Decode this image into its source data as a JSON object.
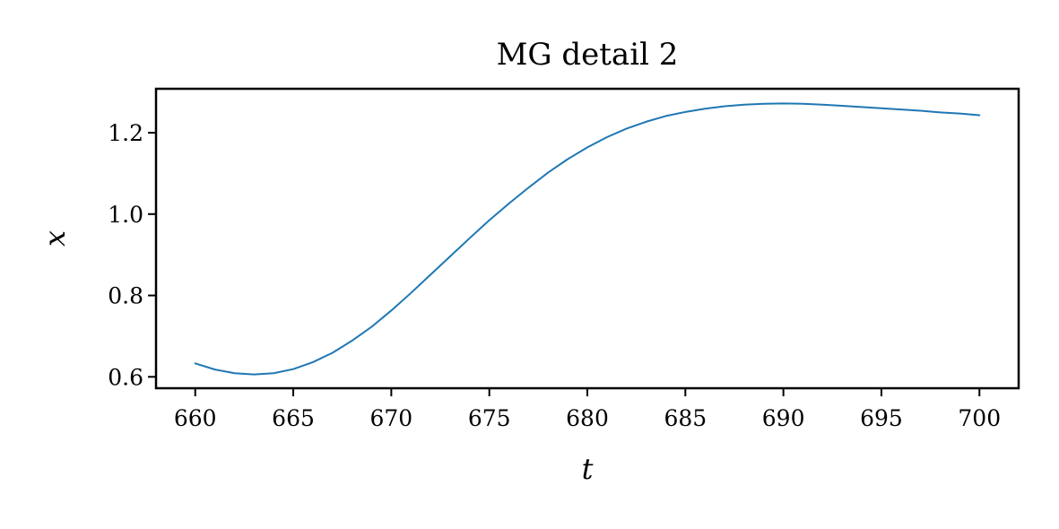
{
  "chart_data": {
    "type": "line",
    "title": "MG detail 2",
    "xlabel": "t",
    "ylabel": "x",
    "xlim": [
      658,
      702
    ],
    "ylim": [
      0.572,
      1.308
    ],
    "grid": false,
    "legend": "none",
    "xticks": [
      660,
      665,
      670,
      675,
      680,
      685,
      690,
      695,
      700
    ],
    "xtick_labels": [
      "660",
      "665",
      "670",
      "675",
      "680",
      "685",
      "690",
      "695",
      "700"
    ],
    "yticks": [
      0.6,
      0.8,
      1.0,
      1.2
    ],
    "ytick_labels": [
      "0.6",
      "0.8",
      "1.0",
      "1.2"
    ],
    "series": [
      {
        "color": "#1f77b4",
        "x": [
          660,
          661,
          662,
          663,
          664,
          665,
          666,
          667,
          668,
          669,
          670,
          671,
          672,
          673,
          674,
          675,
          676,
          677,
          678,
          679,
          680,
          681,
          682,
          683,
          684,
          685,
          686,
          687,
          688,
          689,
          690,
          691,
          692,
          693,
          694,
          695,
          696,
          697,
          698,
          699,
          700
        ],
        "y": [
          0.633,
          0.618,
          0.609,
          0.606,
          0.609,
          0.619,
          0.636,
          0.659,
          0.689,
          0.723,
          0.763,
          0.806,
          0.851,
          0.896,
          0.941,
          0.985,
          1.026,
          1.065,
          1.102,
          1.135,
          1.164,
          1.189,
          1.21,
          1.227,
          1.241,
          1.251,
          1.259,
          1.265,
          1.269,
          1.271,
          1.272,
          1.271,
          1.269,
          1.266,
          1.263,
          1.26,
          1.257,
          1.254,
          1.25,
          1.247,
          1.243
        ]
      }
    ]
  }
}
